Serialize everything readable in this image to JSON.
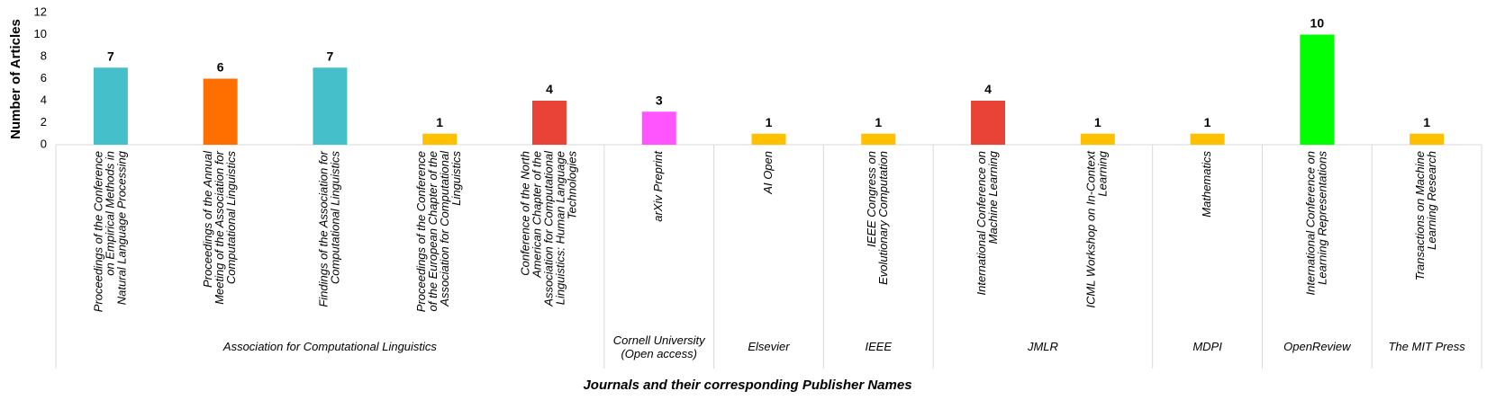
{
  "chart_data": {
    "type": "bar",
    "y_label": "Number of Articles",
    "x_label": "Journals and their corresponding Publisher Names",
    "ylim": [
      0,
      12
    ],
    "yticks": [
      0,
      2,
      4,
      6,
      8,
      10,
      12
    ],
    "groups": [
      {
        "name": [
          "Association for Computational Linguistics"
        ],
        "categories": [
          [
            "Proceedings of the Conference",
            "on Empirical Methods in",
            "Natural Language Processing"
          ],
          [
            "Proceedings of the Annual",
            "Meeting of the Association for",
            "Computational Linguistics"
          ],
          [
            "Findings of the Association for",
            "Computational Linguistics"
          ],
          [
            "Proceedings of the Conference",
            "of the European Chapter of the",
            "Association for Computational",
            "Linguistics"
          ],
          [
            "Conference of the North",
            "American Chapter of the",
            "Association for Computational",
            "Linguistics: Human Language",
            "Technologies"
          ]
        ],
        "values": [
          7,
          6,
          7,
          1,
          4
        ],
        "colors": [
          "#45bfc9",
          "#ff6f00",
          "#45bfc9",
          "#ffc000",
          "#e84336"
        ]
      },
      {
        "name": [
          "Cornell University",
          "(Open access)"
        ],
        "categories": [
          [
            "arXiv Preprint"
          ]
        ],
        "values": [
          3
        ],
        "colors": [
          "#ff55ff"
        ]
      },
      {
        "name": [
          "Elsevier"
        ],
        "categories": [
          [
            "AI Open"
          ]
        ],
        "values": [
          1
        ],
        "colors": [
          "#ffc000"
        ]
      },
      {
        "name": [
          "IEEE"
        ],
        "categories": [
          [
            "IEEE Congress on",
            "Evolutionary Computation"
          ]
        ],
        "values": [
          1
        ],
        "colors": [
          "#ffc000"
        ]
      },
      {
        "name": [
          "JMLR"
        ],
        "categories": [
          [
            "International Conference on",
            "Machine Learning"
          ],
          [
            "ICML Workshop on In-Context",
            "Learning"
          ]
        ],
        "values": [
          4,
          1
        ],
        "colors": [
          "#e84336",
          "#ffc000"
        ]
      },
      {
        "name": [
          "MDPI"
        ],
        "categories": [
          [
            "Mathematics"
          ]
        ],
        "values": [
          1
        ],
        "colors": [
          "#ffc000"
        ]
      },
      {
        "name": [
          "OpenReview"
        ],
        "categories": [
          [
            "International Conference on",
            "Learning Representations"
          ]
        ],
        "values": [
          10
        ],
        "colors": [
          "#00ff00"
        ]
      },
      {
        "name": [
          "The MIT Press"
        ],
        "categories": [
          [
            "Transactions on Machine",
            "Learning Research"
          ]
        ],
        "values": [
          1
        ],
        "colors": [
          "#ffc000"
        ]
      }
    ]
  }
}
